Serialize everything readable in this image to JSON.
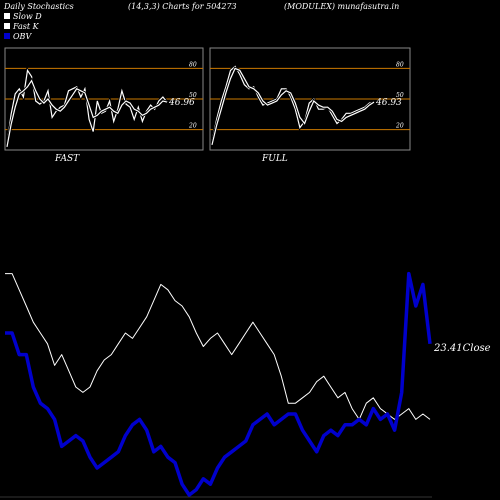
{
  "header": {
    "title": "Daily Stochastics",
    "params": "(14,3,3) Charts for 504273",
    "site": "(MODULEX) munafasutra.in"
  },
  "legend": {
    "items": [
      {
        "label": "Slow  D",
        "color": "#ffffff"
      },
      {
        "label": "Fast K",
        "color": "#ffffff"
      },
      {
        "label": "OBV",
        "color": "#0000cc"
      }
    ]
  },
  "colors": {
    "background": "#000000",
    "panel_border": "#888888",
    "level_line": "#cc7a00",
    "stoch_line": "#ffffff",
    "obv": "#0000cc",
    "close": "#ffffff"
  },
  "chart_data": [
    {
      "type": "line",
      "panel": "FAST",
      "title": "FAST",
      "ylim": [
        0,
        100
      ],
      "yticks": [
        20,
        50,
        80
      ],
      "levels": [
        20,
        50,
        80
      ],
      "last_value_label": "46.96",
      "series": [
        {
          "name": "Fast K",
          "values": [
            5,
            35,
            55,
            60,
            52,
            78,
            72,
            48,
            45,
            48,
            58,
            32,
            38,
            42,
            44,
            58,
            60,
            62,
            52,
            60,
            30,
            18,
            48,
            36,
            38,
            48,
            28,
            40,
            58,
            45,
            42,
            30,
            42,
            28,
            38,
            44,
            40,
            48,
            52,
            47
          ]
        },
        {
          "name": "Slow  D",
          "values": [
            3,
            25,
            42,
            55,
            58,
            62,
            68,
            58,
            50,
            46,
            50,
            44,
            40,
            38,
            42,
            48,
            54,
            60,
            58,
            56,
            44,
            32,
            34,
            38,
            40,
            42,
            38,
            36,
            44,
            48,
            46,
            40,
            38,
            34,
            36,
            40,
            42,
            44,
            48,
            47
          ]
        }
      ]
    },
    {
      "type": "line",
      "panel": "FULL",
      "title": "FULL",
      "ylim": [
        0,
        100
      ],
      "yticks": [
        20,
        50,
        80
      ],
      "levels": [
        20,
        50,
        80
      ],
      "last_value_label": "46.93",
      "series": [
        {
          "name": "Fast K",
          "values": [
            8,
            30,
            48,
            62,
            78,
            82,
            74,
            64,
            60,
            62,
            52,
            44,
            46,
            48,
            50,
            60,
            60,
            52,
            40,
            22,
            28,
            46,
            50,
            40,
            40,
            42,
            34,
            26,
            30,
            36,
            36,
            38,
            40,
            42,
            46,
            47
          ]
        },
        {
          "name": "Slow  D",
          "values": [
            5,
            24,
            40,
            56,
            70,
            80,
            78,
            70,
            62,
            60,
            56,
            48,
            44,
            46,
            48,
            54,
            58,
            56,
            46,
            32,
            26,
            38,
            48,
            44,
            42,
            42,
            38,
            30,
            28,
            32,
            34,
            36,
            38,
            40,
            44,
            47
          ]
        }
      ]
    },
    {
      "type": "line",
      "panel": "PRICE",
      "last_value_label": "23.41",
      "close_label": "Close",
      "series": [
        {
          "name": "OBV",
          "values": [
            60,
            60,
            52,
            52,
            40,
            34,
            32,
            28,
            18,
            20,
            22,
            20,
            14,
            10,
            12,
            14,
            16,
            22,
            26,
            28,
            24,
            16,
            18,
            14,
            12,
            4,
            0,
            2,
            6,
            4,
            10,
            14,
            16,
            18,
            20,
            26,
            28,
            30,
            26,
            28,
            30,
            30,
            24,
            20,
            16,
            22,
            24,
            22,
            26,
            26,
            28,
            26,
            32,
            28,
            30,
            24,
            38,
            82,
            70,
            78,
            56
          ]
        },
        {
          "name": "Close",
          "values": [
            82,
            82,
            76,
            70,
            64,
            60,
            56,
            48,
            52,
            46,
            40,
            38,
            40,
            46,
            50,
            52,
            56,
            60,
            58,
            62,
            66,
            72,
            78,
            76,
            72,
            70,
            66,
            60,
            55,
            58,
            60,
            56,
            52,
            56,
            60,
            64,
            60,
            56,
            52,
            44,
            34,
            34,
            36,
            38,
            42,
            44,
            40,
            36,
            38,
            32,
            28,
            34,
            36,
            32,
            30,
            28,
            30,
            32,
            28,
            30,
            28
          ]
        }
      ]
    }
  ]
}
